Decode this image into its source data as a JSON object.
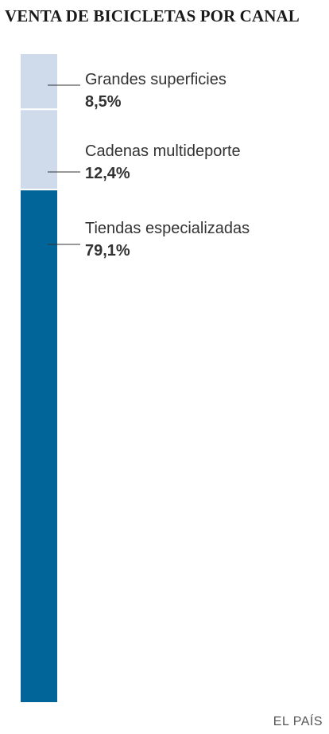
{
  "title": "VENTA DE BICICLETAS POR CANAL",
  "source": "EL PAÍS",
  "colors": {
    "light": "#cfdbea",
    "dark": "#02659a",
    "leader": "#333333",
    "label": "#333333"
  },
  "chart_data": {
    "type": "bar",
    "stacked": true,
    "unit": "%",
    "categories": [
      "Grandes superficies",
      "Cadenas multideporte",
      "Tiendas especializadas"
    ],
    "values": [
      8.5,
      12.4,
      79.1
    ],
    "value_labels": [
      "8,5%",
      "12,4%",
      "79,1%"
    ],
    "series_colors": [
      "#cfdbea",
      "#cfdbea",
      "#02659a"
    ],
    "title": "VENTA DE BICICLETAS POR CANAL"
  }
}
